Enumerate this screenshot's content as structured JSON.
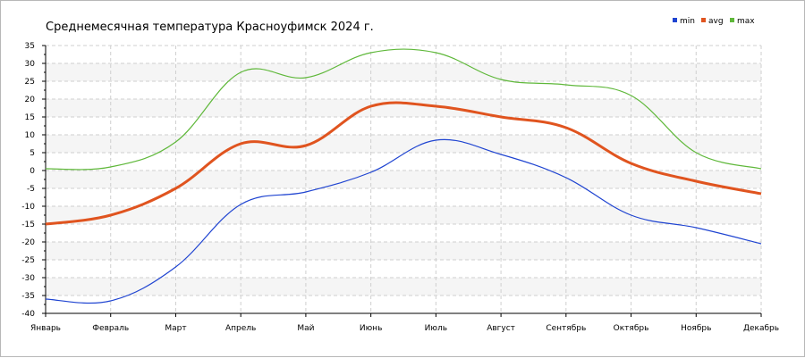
{
  "chart_data": {
    "type": "line",
    "title": "Среднемесячная температура Красноуфимск  2024 г.",
    "categories": [
      "Январь",
      "Февраль",
      "Март",
      "Апрель",
      "Май",
      "Июнь",
      "Июль",
      "Август",
      "Сентябрь",
      "Октябрь",
      "Ноябрь",
      "Декабрь"
    ],
    "ylim": [
      -40,
      35
    ],
    "yticks": [
      35,
      30,
      25,
      20,
      15,
      10,
      5,
      0,
      -5,
      -10,
      -15,
      -20,
      -25,
      -30,
      -35,
      -40
    ],
    "grid": true,
    "legend_position": "top-right",
    "series": [
      {
        "name": "min",
        "color": "#1f44d1",
        "values": [
          -36,
          -36.5,
          -27,
          -9.5,
          -6,
          -0.5,
          8.5,
          4.5,
          -2,
          -12.5,
          -16,
          -20.5
        ]
      },
      {
        "name": "avg",
        "color": "#e0541f",
        "values": [
          -15,
          -12.5,
          -5,
          7.5,
          7,
          18,
          18,
          15,
          12,
          2,
          -3,
          -6.5
        ]
      },
      {
        "name": "max",
        "color": "#5fb83a",
        "values": [
          0.5,
          1,
          8,
          27.5,
          26,
          33,
          33,
          25.5,
          24,
          21,
          5,
          0.5
        ]
      }
    ]
  }
}
